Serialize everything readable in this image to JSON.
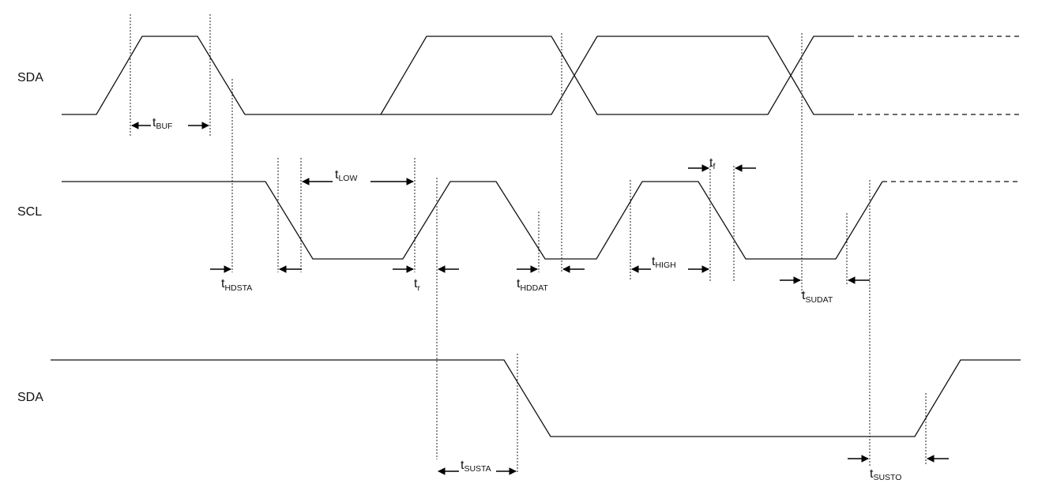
{
  "signals": {
    "sda_top": "SDA",
    "scl": "SCL",
    "sda_bottom": "SDA"
  },
  "timing": {
    "t_buf": {
      "main": "t",
      "sub": "BUF"
    },
    "t_low": {
      "main": "t",
      "sub": "LOW"
    },
    "t_hdsta": {
      "main": "t",
      "sub": "HDSTA"
    },
    "t_r": {
      "main": "t",
      "sub": "r"
    },
    "t_hddat": {
      "main": "t",
      "sub": "HDDAT"
    },
    "t_f": {
      "main": "t",
      "sub": "f"
    },
    "t_high": {
      "main": "t",
      "sub": "HIGH"
    },
    "t_sudat": {
      "main": "t",
      "sub": "SUDAT"
    },
    "t_susta": {
      "main": "t",
      "sub": "SUSTA"
    },
    "t_susto": {
      "main": "t",
      "sub": "SUSTO"
    }
  }
}
